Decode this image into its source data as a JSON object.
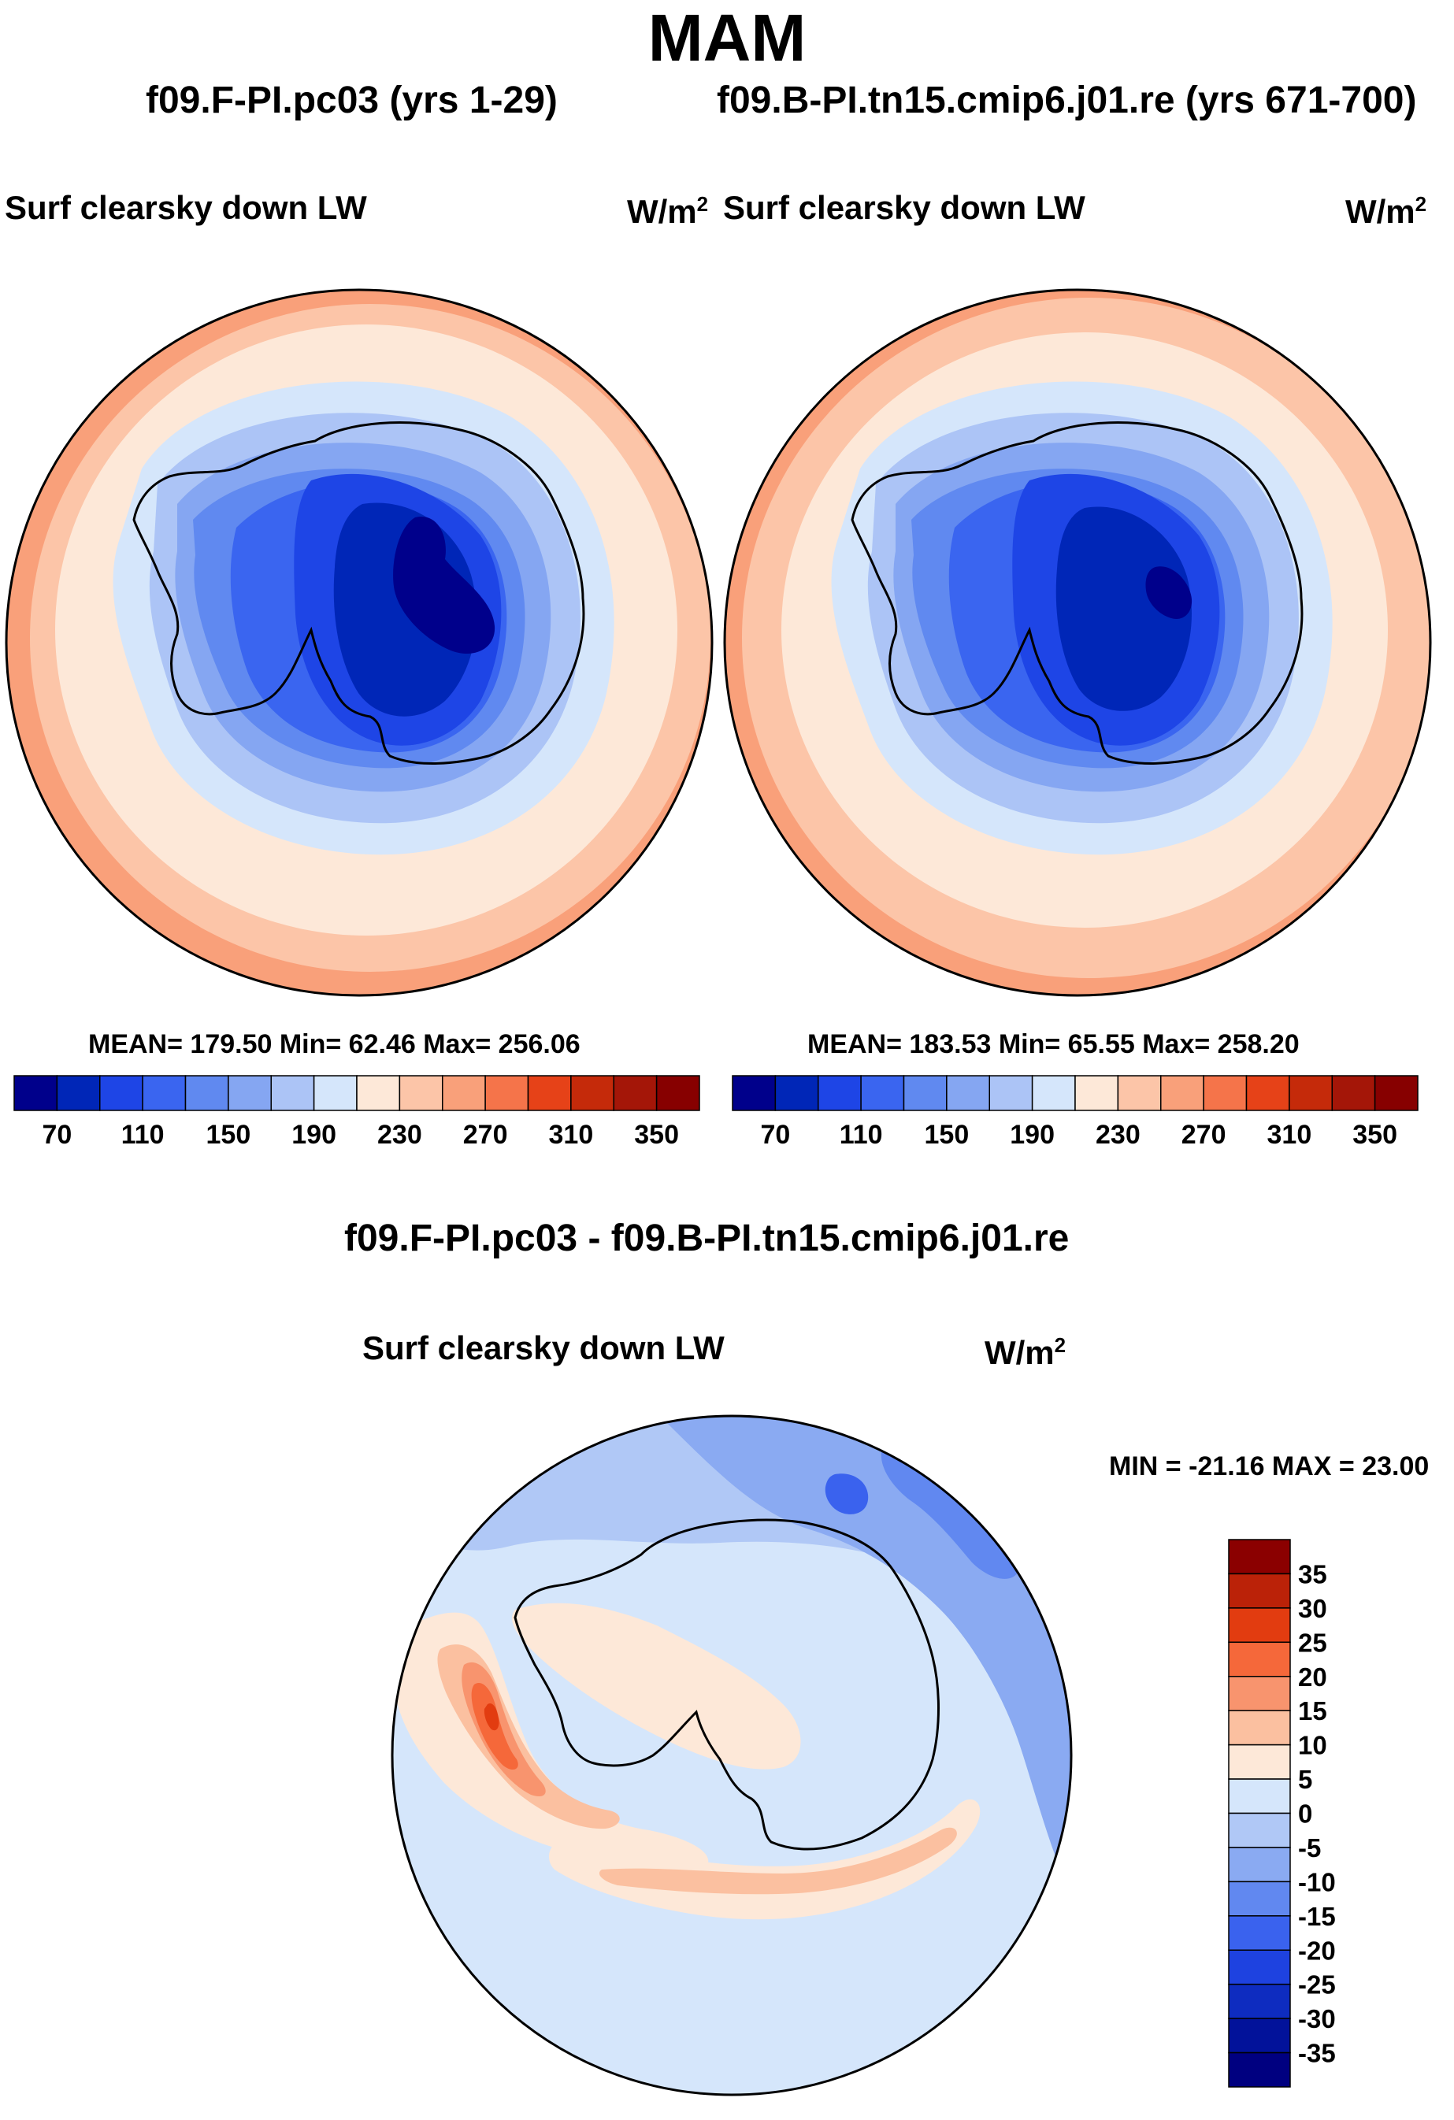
{
  "figure": {
    "title": "MAM",
    "panels": [
      {
        "case_title": "f09.F-PI.pc03 (yrs 1-29)",
        "variable": "Surf clearsky down LW",
        "units_base": "W/m",
        "units_exp": "2",
        "stats": "MEAN= 179.50  Min=  62.46  Max= 256.06"
      },
      {
        "case_title": "f09.B-PI.tn15.cmip6.j01.re (yrs 671-700)",
        "variable": "Surf clearsky down LW",
        "units_base": "W/m",
        "units_exp": "2",
        "stats": "MEAN= 183.53  Min=  65.55  Max= 258.20"
      }
    ],
    "diff_panel": {
      "case_title": "f09.F-PI.pc03 - f09.B-PI.tn15.cmip6.j01.re",
      "variable": "Surf clearsky down LW",
      "units_base": "W/m",
      "units_exp": "2",
      "stats": "MIN = -21.16 MAX =  23.00"
    }
  },
  "chart_data": [
    {
      "type": "heatmap",
      "projection": "south polar stereographic",
      "title": "f09.F-PI.pc03 (yrs 1-29)",
      "variable": "Surf clearsky down LW",
      "units": "W/m2",
      "mean": 179.5,
      "min": 62.46,
      "max": 256.06,
      "colorbar": {
        "levels": [
          70,
          90,
          110,
          130,
          150,
          170,
          190,
          210,
          230,
          250,
          270,
          290,
          310,
          330,
          350
        ],
        "tick_labels": [
          "70",
          "110",
          "150",
          "190",
          "230",
          "270",
          "310",
          "350"
        ],
        "colors": [
          "#00008b",
          "#0026b7",
          "#1e45e6",
          "#3a65f0",
          "#6089f0",
          "#85a6f2",
          "#acc4f6",
          "#d5e6fb",
          "#fde8d8",
          "#fcc5a8",
          "#f9a07a",
          "#f5744a",
          "#e64218",
          "#c52a0a",
          "#a41608",
          "#870000"
        ]
      }
    },
    {
      "type": "heatmap",
      "projection": "south polar stereographic",
      "title": "f09.B-PI.tn15.cmip6.j01.re (yrs 671-700)",
      "variable": "Surf clearsky down LW",
      "units": "W/m2",
      "mean": 183.53,
      "min": 65.55,
      "max": 258.2,
      "colorbar": {
        "levels": [
          70,
          90,
          110,
          130,
          150,
          170,
          190,
          210,
          230,
          250,
          270,
          290,
          310,
          330,
          350
        ],
        "tick_labels": [
          "70",
          "110",
          "150",
          "190",
          "230",
          "270",
          "310",
          "350"
        ],
        "colors": [
          "#00008b",
          "#0026b7",
          "#1e45e6",
          "#3a65f0",
          "#6089f0",
          "#85a6f2",
          "#acc4f6",
          "#d5e6fb",
          "#fde8d8",
          "#fcc5a8",
          "#f9a07a",
          "#f5744a",
          "#e64218",
          "#c52a0a",
          "#a41608",
          "#870000"
        ]
      }
    },
    {
      "type": "heatmap",
      "projection": "south polar stereographic",
      "title": "f09.F-PI.pc03 - f09.B-PI.tn15.cmip6.j01.re",
      "variable": "Surf clearsky down LW",
      "units": "W/m2",
      "min": -21.16,
      "max": 23.0,
      "colorbar": {
        "orientation": "vertical",
        "levels": [
          35,
          30,
          25,
          20,
          15,
          10,
          5,
          0,
          -5,
          -10,
          -15,
          -20,
          -25,
          -30,
          -35
        ],
        "tick_labels": [
          "35",
          "30",
          "25",
          "20",
          "15",
          "10",
          "5",
          "0",
          "-5",
          "-10",
          "-15",
          "-20",
          "-25",
          "-30",
          "-35"
        ],
        "colors": [
          "#8b0000",
          "#bb2208",
          "#e23c10",
          "#f5683a",
          "#f8946e",
          "#fbc0a0",
          "#fde8d8",
          "#d5e6fb",
          "#b0c8f6",
          "#8aaaf2",
          "#6188f0",
          "#3a62ee",
          "#1e42e0",
          "#0e2cc0",
          "#02129a",
          "#000080"
        ]
      }
    }
  ]
}
